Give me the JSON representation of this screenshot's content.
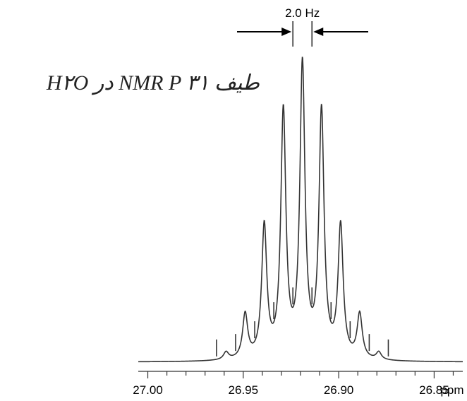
{
  "title": "طيف NMR P ۳۱ در H۲O",
  "chart_data": {
    "type": "line",
    "title": "طيف NMR P ۳۱ در H۲O",
    "xlabel": "ppm",
    "ylabel": "",
    "xlim": [
      27.005,
      26.835
    ],
    "xticks": [
      27.0,
      26.95,
      26.9,
      26.85
    ],
    "xtick_labels": [
      "27.00",
      "26.95",
      "26.90",
      "26.85",
      "ppm"
    ],
    "grid": false,
    "multiplet": {
      "center_ppm": 26.919,
      "spacing_ppm": 0.01,
      "spacing_label": "2.0 Hz",
      "peaks_ppm": [
        26.959,
        26.949,
        26.939,
        26.929,
        26.919,
        26.909,
        26.899,
        26.889,
        26.879
      ],
      "relative_intensity": [
        0.026,
        0.153,
        0.452,
        0.842,
        1.0,
        0.842,
        0.452,
        0.153,
        0.026
      ],
      "baseline_ppm": [
        26.964,
        26.954,
        26.944,
        26.934,
        26.924,
        26.914,
        26.904,
        26.894,
        26.884,
        26.874
      ]
    }
  }
}
